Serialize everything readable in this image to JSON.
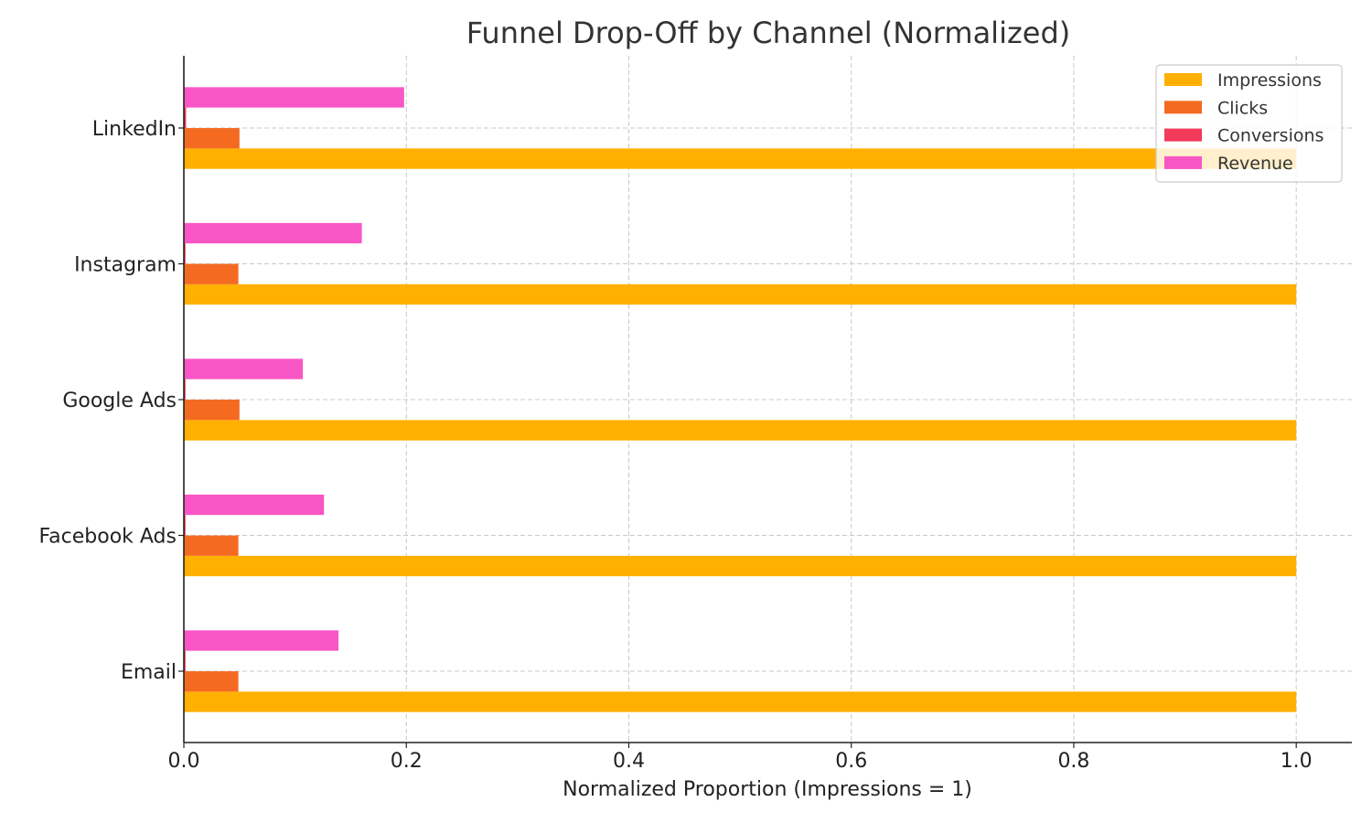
{
  "chart_data": {
    "type": "bar",
    "orientation": "horizontal",
    "title": "Funnel Drop-Off by Channel (Normalized)",
    "xlabel": "Normalized Proportion (Impressions = 1)",
    "ylabel": "",
    "xlim": [
      0,
      1.05
    ],
    "xticks": [
      "0.0",
      "0.2",
      "0.4",
      "0.6",
      "0.8",
      "1.0"
    ],
    "xtick_values": [
      0,
      0.2,
      0.4,
      0.6,
      0.8,
      1.0
    ],
    "grid": true,
    "legend_position": "top-right",
    "categories": [
      "Email",
      "Facebook Ads",
      "Google Ads",
      "Instagram",
      "LinkedIn"
    ],
    "series": [
      {
        "name": "Impressions",
        "color": "#FFB000",
        "values": [
          1.0,
          1.0,
          1.0,
          1.0,
          1.0
        ]
      },
      {
        "name": "Clicks",
        "color": "#F46A21",
        "values": [
          0.049,
          0.049,
          0.05,
          0.049,
          0.05
        ]
      },
      {
        "name": "Conversions",
        "color": "#F23A5A",
        "values": [
          0.0015,
          0.0015,
          0.0015,
          0.0015,
          0.002
        ]
      },
      {
        "name": "Revenue",
        "color": "#F956C5",
        "values": [
          0.139,
          0.126,
          0.107,
          0.16,
          0.198
        ]
      }
    ]
  }
}
